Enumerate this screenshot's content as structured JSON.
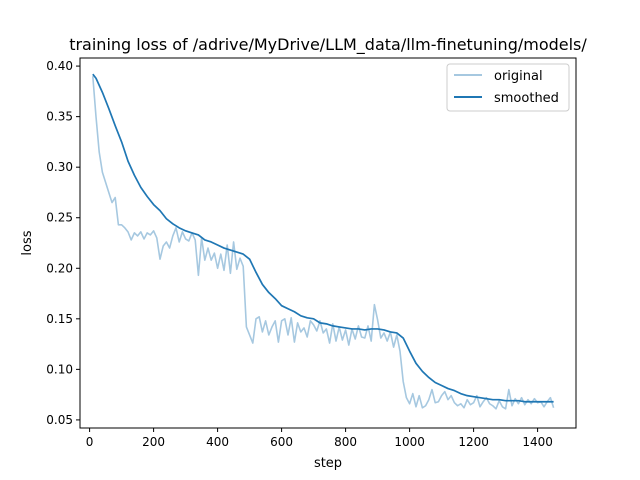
{
  "chart_data": {
    "type": "line",
    "title": "training loss of /adrive/MyDrive/LLM_data/llm-finetuning/models/",
    "xlabel": "step",
    "ylabel": "loss",
    "xlim": [
      -30,
      1520
    ],
    "ylim": [
      0.042,
      0.408
    ],
    "xticks": [
      0,
      200,
      400,
      600,
      800,
      1000,
      1200,
      1400
    ],
    "yticks": [
      0.05,
      0.1,
      0.15,
      0.2,
      0.25,
      0.3,
      0.35,
      0.4
    ],
    "ytick_labels": [
      "0.05",
      "0.10",
      "0.15",
      "0.20",
      "0.25",
      "0.30",
      "0.35",
      "0.40"
    ],
    "grid": false,
    "legend": "top-right",
    "series": [
      {
        "name": "original",
        "color": "#a6c8e0",
        "x": [
          10,
          20,
          30,
          40,
          50,
          60,
          70,
          80,
          90,
          100,
          110,
          120,
          130,
          140,
          150,
          160,
          170,
          180,
          190,
          200,
          210,
          220,
          230,
          240,
          250,
          260,
          270,
          280,
          290,
          300,
          310,
          320,
          330,
          340,
          350,
          360,
          370,
          380,
          390,
          400,
          410,
          420,
          430,
          440,
          450,
          460,
          470,
          480,
          490,
          500,
          510,
          520,
          530,
          540,
          550,
          560,
          570,
          580,
          590,
          600,
          610,
          620,
          630,
          640,
          650,
          660,
          670,
          680,
          690,
          700,
          710,
          720,
          730,
          740,
          750,
          760,
          770,
          780,
          790,
          800,
          810,
          820,
          830,
          840,
          850,
          860,
          870,
          880,
          890,
          900,
          910,
          920,
          930,
          940,
          950,
          960,
          970,
          980,
          990,
          1000,
          1010,
          1020,
          1030,
          1040,
          1050,
          1060,
          1070,
          1080,
          1090,
          1100,
          1110,
          1120,
          1130,
          1140,
          1150,
          1160,
          1170,
          1180,
          1190,
          1200,
          1210,
          1220,
          1230,
          1240,
          1250,
          1260,
          1270,
          1280,
          1290,
          1300,
          1310,
          1320,
          1330,
          1340,
          1350,
          1360,
          1370,
          1380,
          1390,
          1400,
          1410,
          1420,
          1430,
          1440,
          1450
        ],
        "values": [
          0.39,
          0.35,
          0.315,
          0.295,
          0.285,
          0.275,
          0.265,
          0.27,
          0.243,
          0.243,
          0.24,
          0.236,
          0.228,
          0.235,
          0.232,
          0.236,
          0.229,
          0.235,
          0.233,
          0.237,
          0.23,
          0.209,
          0.222,
          0.226,
          0.22,
          0.232,
          0.24,
          0.226,
          0.236,
          0.229,
          0.227,
          0.235,
          0.228,
          0.193,
          0.23,
          0.208,
          0.22,
          0.208,
          0.215,
          0.2,
          0.214,
          0.198,
          0.223,
          0.195,
          0.226,
          0.199,
          0.21,
          0.202,
          0.142,
          0.134,
          0.126,
          0.15,
          0.152,
          0.137,
          0.148,
          0.134,
          0.142,
          0.148,
          0.127,
          0.148,
          0.15,
          0.134,
          0.151,
          0.127,
          0.146,
          0.137,
          0.141,
          0.132,
          0.148,
          0.144,
          0.138,
          0.148,
          0.136,
          0.14,
          0.126,
          0.145,
          0.128,
          0.142,
          0.129,
          0.139,
          0.124,
          0.14,
          0.13,
          0.143,
          0.132,
          0.131,
          0.143,
          0.128,
          0.164,
          0.149,
          0.131,
          0.136,
          0.128,
          0.137,
          0.122,
          0.134,
          0.118,
          0.088,
          0.072,
          0.066,
          0.076,
          0.063,
          0.074,
          0.062,
          0.064,
          0.07,
          0.08,
          0.067,
          0.068,
          0.074,
          0.078,
          0.07,
          0.074,
          0.067,
          0.064,
          0.066,
          0.062,
          0.07,
          0.065,
          0.067,
          0.074,
          0.063,
          0.068,
          0.072,
          0.066,
          0.064,
          0.061,
          0.069,
          0.063,
          0.061,
          0.08,
          0.064,
          0.071,
          0.066,
          0.072,
          0.065,
          0.07,
          0.066,
          0.071,
          0.067,
          0.068,
          0.063,
          0.068,
          0.072,
          0.062
        ]
      },
      {
        "name": "smoothed",
        "color": "#1f77b4",
        "x": [
          10,
          20,
          40,
          60,
          80,
          100,
          120,
          140,
          160,
          180,
          200,
          220,
          240,
          260,
          280,
          300,
          320,
          340,
          360,
          380,
          400,
          420,
          440,
          460,
          480,
          500,
          520,
          540,
          560,
          580,
          600,
          620,
          640,
          660,
          680,
          700,
          720,
          740,
          760,
          780,
          800,
          820,
          840,
          860,
          880,
          900,
          920,
          940,
          960,
          980,
          1000,
          1020,
          1040,
          1060,
          1080,
          1100,
          1120,
          1140,
          1160,
          1180,
          1200,
          1220,
          1240,
          1260,
          1280,
          1300,
          1320,
          1340,
          1360,
          1380,
          1400,
          1420,
          1440,
          1450
        ],
        "values": [
          0.392,
          0.388,
          0.374,
          0.358,
          0.341,
          0.325,
          0.306,
          0.292,
          0.28,
          0.271,
          0.263,
          0.257,
          0.249,
          0.244,
          0.24,
          0.237,
          0.235,
          0.233,
          0.228,
          0.226,
          0.223,
          0.22,
          0.218,
          0.216,
          0.214,
          0.209,
          0.196,
          0.184,
          0.176,
          0.17,
          0.163,
          0.16,
          0.157,
          0.153,
          0.151,
          0.15,
          0.146,
          0.145,
          0.143,
          0.142,
          0.141,
          0.14,
          0.14,
          0.139,
          0.14,
          0.14,
          0.139,
          0.137,
          0.136,
          0.131,
          0.118,
          0.106,
          0.098,
          0.092,
          0.087,
          0.084,
          0.081,
          0.079,
          0.076,
          0.074,
          0.073,
          0.072,
          0.071,
          0.07,
          0.07,
          0.069,
          0.069,
          0.069,
          0.068,
          0.068,
          0.068,
          0.068,
          0.068,
          0.068
        ]
      }
    ]
  }
}
